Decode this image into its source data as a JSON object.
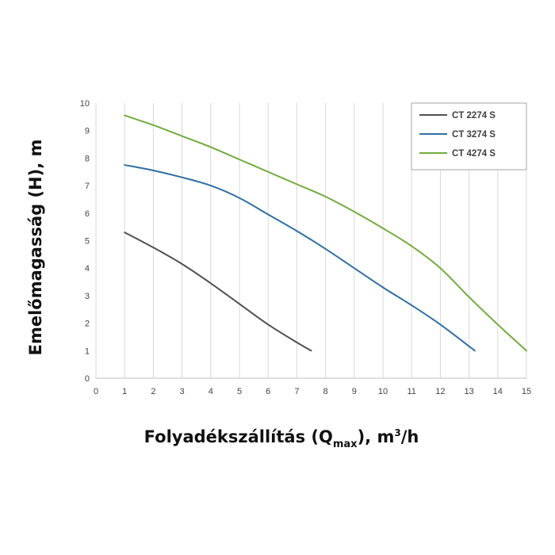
{
  "chart_data": {
    "type": "line",
    "xlabel": {
      "main": "Folyadékszállítás (Q",
      "sub": "max",
      "tail": "), m",
      "sup": "3",
      "end": "/h"
    },
    "ylabel": "Emelőmagasság (H), m",
    "xlim": [
      0,
      15
    ],
    "ylim": [
      0,
      10
    ],
    "x_ticks": [
      "0",
      "1",
      "2",
      "3",
      "4",
      "5",
      "6",
      "7",
      "8",
      "9",
      "10",
      "11",
      "12",
      "13",
      "14",
      "15"
    ],
    "y_ticks": [
      "0",
      "1",
      "2",
      "3",
      "4",
      "5",
      "6",
      "7",
      "8",
      "9",
      "10"
    ],
    "grid": "vertical",
    "legend_position": "top-right",
    "series": [
      {
        "name": "CT 2274 S",
        "color": "#505050",
        "x": [
          1,
          2,
          3,
          4,
          5,
          6,
          7,
          7.5
        ],
        "y": [
          5.3,
          4.75,
          4.15,
          3.45,
          2.7,
          1.95,
          1.3,
          1.0
        ]
      },
      {
        "name": "CT 3274 S",
        "color": "#2f6fa3",
        "x": [
          1,
          2,
          3,
          4,
          5,
          6,
          7,
          8,
          9,
          10,
          11,
          12,
          13.2
        ],
        "y": [
          7.75,
          7.55,
          7.3,
          7.0,
          6.55,
          5.95,
          5.35,
          4.7,
          4.0,
          3.3,
          2.65,
          1.95,
          1.0
        ]
      },
      {
        "name": "CT 4274 S",
        "color": "#72ac3f",
        "x": [
          1,
          2,
          3,
          4,
          5,
          6,
          7,
          8,
          9,
          10,
          11,
          12,
          13,
          14,
          15
        ],
        "y": [
          9.55,
          9.2,
          8.8,
          8.4,
          7.95,
          7.5,
          7.05,
          6.6,
          6.05,
          5.45,
          4.8,
          4.0,
          2.95,
          1.95,
          1.0
        ]
      }
    ]
  }
}
